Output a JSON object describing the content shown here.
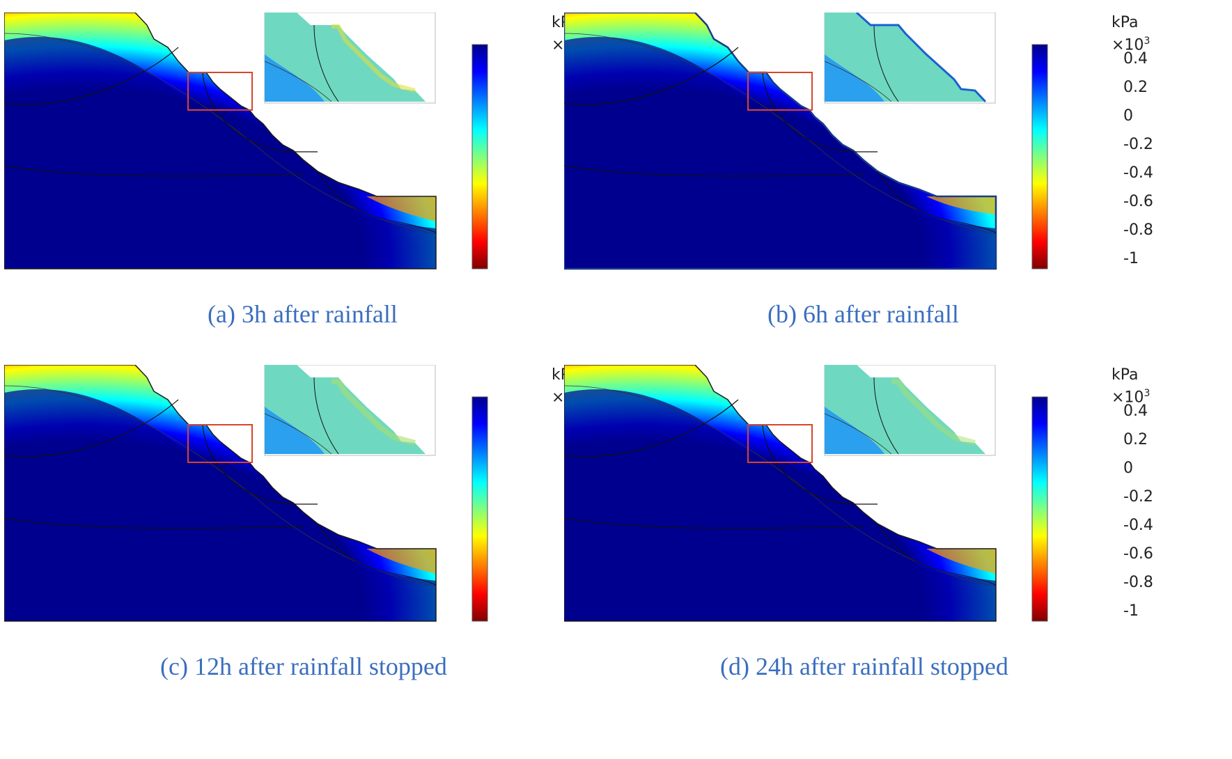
{
  "colorbar": {
    "unit": "kPa",
    "multiplier": "×10",
    "exponent": "3",
    "ticks": [
      "0.4",
      "0.2",
      "0",
      "-0.2",
      "-0.4",
      "-0.6",
      "-0.8",
      "-1"
    ],
    "colors": [
      "#7f0000",
      "#ff0000",
      "#ff8000",
      "#ffff00",
      "#80ff80",
      "#00ffff",
      "#0080ff",
      "#0000ff",
      "#00008f"
    ]
  },
  "panels": [
    {
      "id": "a",
      "caption": "(a) 3h after rainfall"
    },
    {
      "id": "b",
      "caption": "(b) 6h after rainfall"
    },
    {
      "id": "c",
      "caption": "(c) 12h after rainfall stopped"
    },
    {
      "id": "d",
      "caption": "(d) 24h after rainfall stopped"
    }
  ]
}
